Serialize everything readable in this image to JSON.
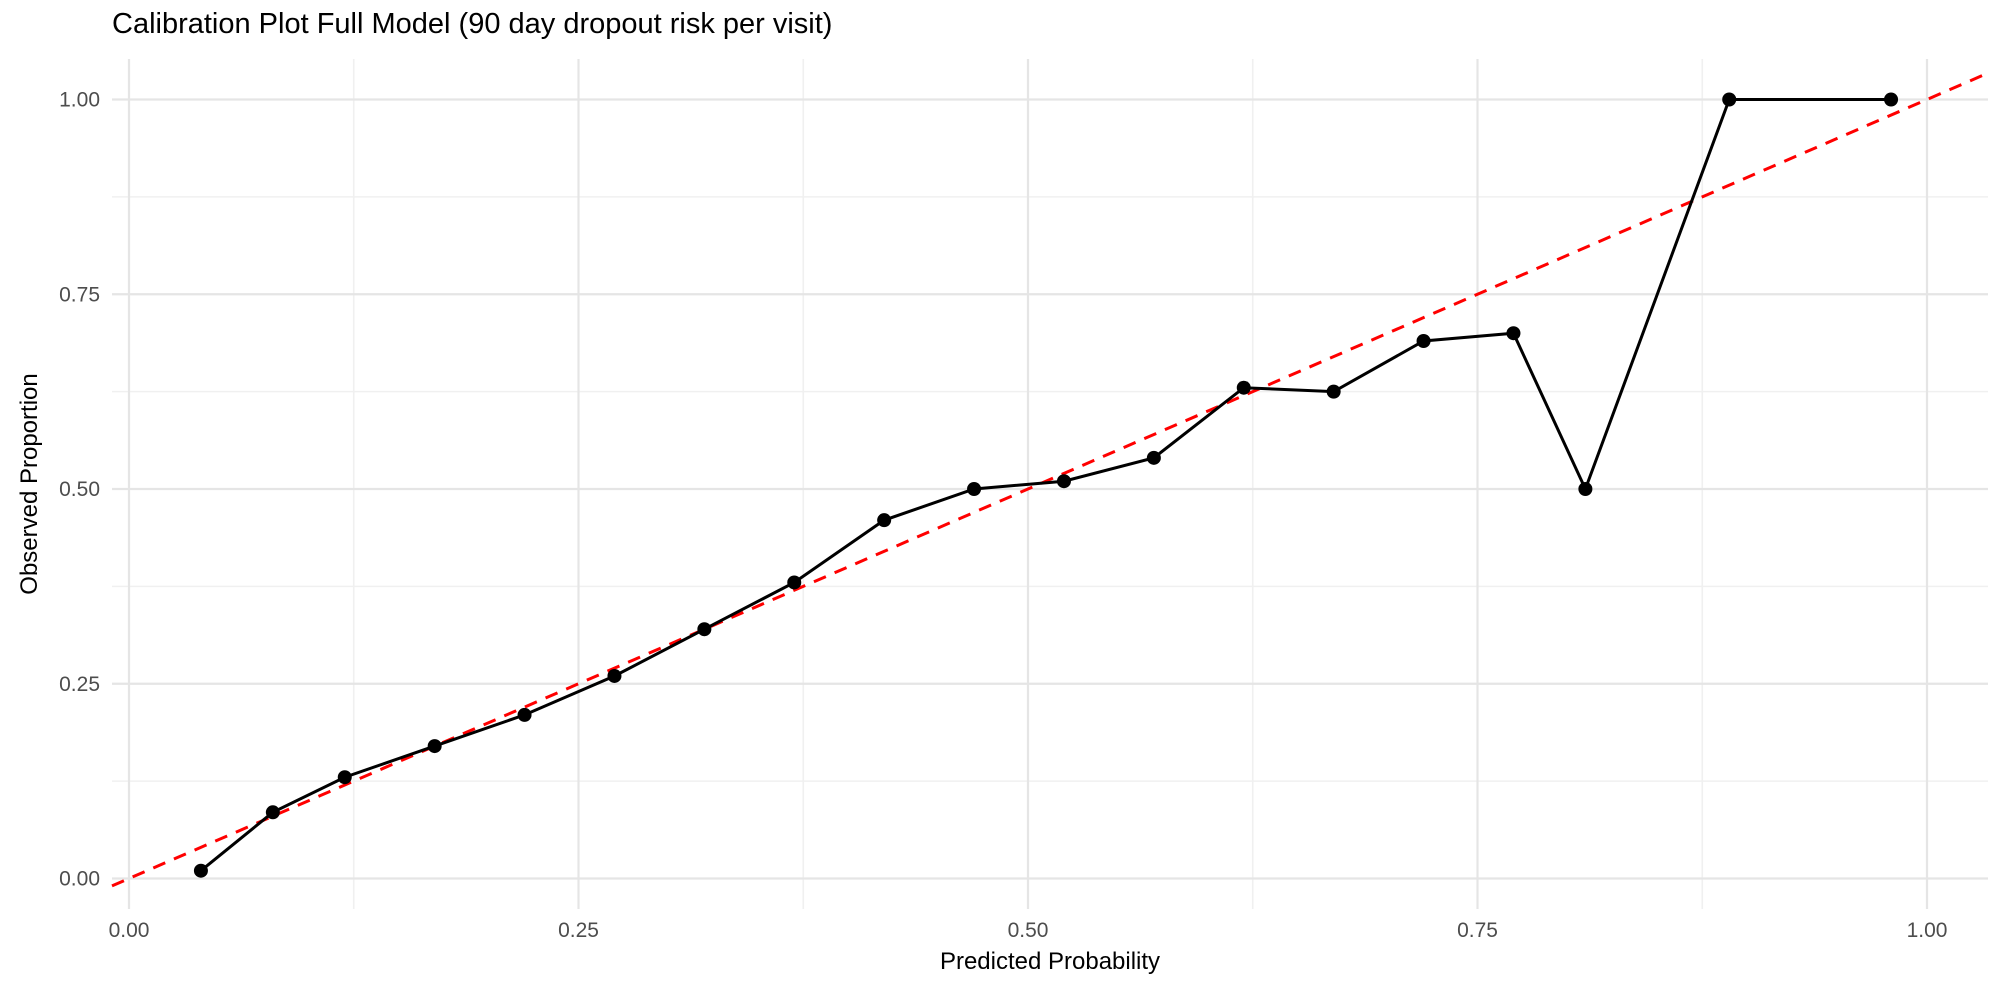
{
  "chart_data": {
    "type": "line",
    "title": "Calibration Plot Full Model (90 day dropout risk per visit)",
    "xlabel": "Predicted Probability",
    "ylabel": "Observed Proportion",
    "xlim": [
      -0.01,
      1.03
    ],
    "ylim": [
      -0.04,
      1.05
    ],
    "grid": "major+minor",
    "legend": false,
    "x_ticks": {
      "values": [
        0,
        0.25,
        0.5,
        0.75,
        1
      ],
      "labels": [
        "0.00",
        "0.25",
        "0.50",
        "0.75",
        "1.00"
      ]
    },
    "y_ticks": {
      "values": [
        0,
        0.25,
        0.5,
        0.75,
        1
      ],
      "labels": [
        "0.00",
        "0.25",
        "0.50",
        "0.75",
        "1.00"
      ]
    },
    "x_minor_ticks": [
      0.125,
      0.375,
      0.625,
      0.875
    ],
    "y_minor_ticks": [
      0.125,
      0.375,
      0.625,
      0.875
    ],
    "series": [
      {
        "name": "calibration-curve",
        "type": "line+points",
        "color": "#000000",
        "points": [
          [
            0.04,
            0.01
          ],
          [
            0.08,
            0.085
          ],
          [
            0.12,
            0.13
          ],
          [
            0.17,
            0.17
          ],
          [
            0.22,
            0.21
          ],
          [
            0.27,
            0.26
          ],
          [
            0.32,
            0.32
          ],
          [
            0.37,
            0.38
          ],
          [
            0.42,
            0.46
          ],
          [
            0.47,
            0.5
          ],
          [
            0.52,
            0.51
          ],
          [
            0.57,
            0.54
          ],
          [
            0.62,
            0.63
          ],
          [
            0.67,
            0.625
          ],
          [
            0.72,
            0.69
          ],
          [
            0.77,
            0.7
          ],
          [
            0.81,
            0.5
          ],
          [
            0.89,
            1.0
          ],
          [
            0.98,
            1.0
          ]
        ]
      },
      {
        "name": "ideal-calibration-reference",
        "type": "reference-line",
        "line_style": "dashed",
        "color": "#FF0000",
        "from": [
          0,
          0
        ],
        "to": [
          1,
          1
        ]
      }
    ],
    "colors": {
      "background": "#FFFFFF",
      "grid_major": "#E5E5E5",
      "grid_minor": "#F0F0F0",
      "tick_label": "#4D4D4D",
      "text": "#000000"
    }
  }
}
